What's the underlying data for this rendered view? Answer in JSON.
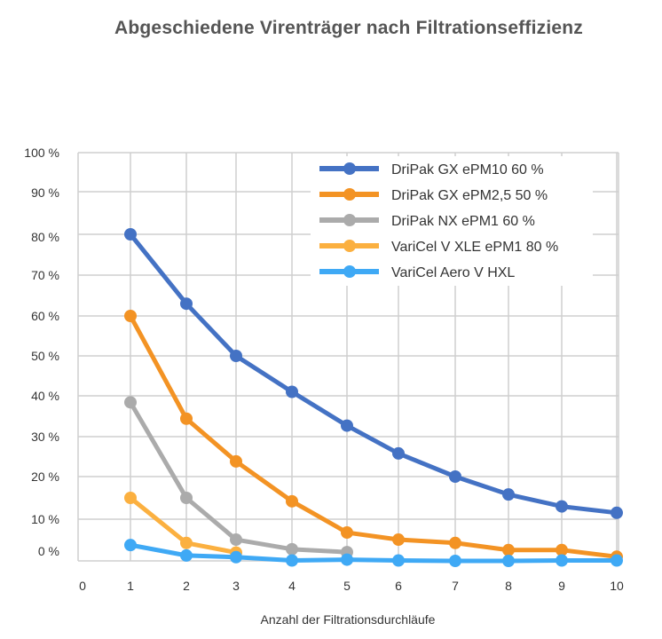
{
  "chart_data": {
    "type": "line",
    "title": "Abgeschiedene Virenträger nach Filtrationseffizienz",
    "xlabel": "Anzahl der Filtrationsdurchläufe",
    "ylabel": "",
    "x_ticks": [
      "0",
      "1",
      "2",
      "3",
      "4",
      "5",
      "6",
      "7",
      "8",
      "9",
      "10"
    ],
    "y_ticks": [
      "0 %",
      "10 %",
      "20 %",
      "30 %",
      "40 %",
      "50 %",
      "60 %",
      "70 %",
      "80 %",
      "90 %",
      "100 %"
    ],
    "xlim": [
      0,
      10
    ],
    "ylim": [
      0,
      100
    ],
    "grid": true,
    "legend_position": "top-right",
    "series": [
      {
        "name": "DriPak GX ePM10 60 %",
        "color": "#4472C4",
        "x": [
          1,
          2,
          3,
          4,
          5,
          6,
          7,
          8,
          9,
          10
        ],
        "values": [
          80,
          63,
          50,
          41,
          32.7,
          25.8,
          20,
          15.8,
          13,
          11.5
        ]
      },
      {
        "name": "DriPak GX ePM2,5 50 %",
        "color": "#F39324",
        "x": [
          1,
          2,
          3,
          4,
          5,
          6,
          7,
          8,
          9,
          10
        ],
        "values": [
          60,
          34.4,
          23.8,
          14.2,
          6.8,
          5.1,
          4.3,
          2.6,
          2.6,
          1
        ]
      },
      {
        "name": "DriPak NX ePM1 60 %",
        "color": "#ABABAB",
        "x": [
          1,
          2,
          3,
          4,
          5
        ],
        "values": [
          38.4,
          15,
          5.1,
          2.8,
          2.1
        ]
      },
      {
        "name": "VariCel V XLE ePM1 80 %",
        "color": "#FBB040",
        "x": [
          1,
          2,
          3
        ],
        "values": [
          15,
          4.3,
          2
        ]
      },
      {
        "name": "VariCel Aero V HXL",
        "color": "#3FA9F5",
        "x": [
          1,
          2,
          3,
          4,
          5,
          6,
          7,
          8,
          9,
          10
        ],
        "values": [
          3.8,
          1.3,
          0.9,
          0.1,
          0.3,
          0.1,
          0,
          0,
          0.1,
          0.1
        ]
      }
    ]
  }
}
